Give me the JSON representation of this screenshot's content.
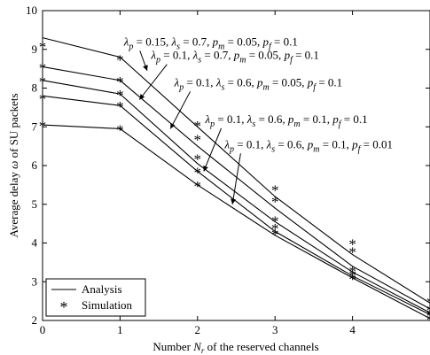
{
  "chart_data": {
    "type": "line",
    "xlabel_parts": [
      "Number ",
      "N",
      "r",
      " of the reserved channels"
    ],
    "ylabel_parts": [
      "Average delay ",
      "ω",
      " of SU packets"
    ],
    "xlim": [
      0,
      5
    ],
    "ylim": [
      2,
      10
    ],
    "x_ticks": [
      0,
      1,
      2,
      3,
      4
    ],
    "y_ticks": [
      2,
      3,
      4,
      5,
      6,
      7,
      8,
      9,
      10
    ],
    "grid": false,
    "legend": {
      "placement": "bottom-left",
      "entries": [
        {
          "label": "Analysis",
          "style": "line"
        },
        {
          "label": "Simulation",
          "style": "marker-asterisk"
        }
      ]
    },
    "x": [
      0,
      1,
      2,
      3,
      4,
      5
    ],
    "series": [
      {
        "label_params": {
          "p": "0.15",
          "s": "0.7",
          "m": "0.05",
          "f": "0.1"
        },
        "analysis": [
          9.3,
          8.8,
          7.0,
          5.2,
          3.7,
          2.45
        ],
        "simulation": [
          9.1,
          8.75,
          7.05,
          5.4,
          4.0,
          2.5
        ]
      },
      {
        "label_params": {
          "p": "0.1",
          "s": "0.7",
          "m": "0.05",
          "f": "0.1"
        },
        "analysis": [
          8.55,
          8.2,
          6.5,
          4.9,
          3.4,
          2.3
        ],
        "simulation": [
          8.55,
          8.2,
          6.7,
          5.1,
          3.8,
          2.3
        ]
      },
      {
        "label_params": {
          "p": "0.1",
          "s": "0.6",
          "m": "0.05",
          "f": "0.1"
        },
        "analysis": [
          8.2,
          7.85,
          6.05,
          4.55,
          3.25,
          2.2
        ],
        "simulation": [
          8.2,
          7.85,
          6.2,
          4.6,
          3.3,
          2.2
        ]
      },
      {
        "label_params": {
          "p": "0.1",
          "s": "0.6",
          "m": "0.1",
          "f": "0.1"
        },
        "analysis": [
          7.8,
          7.55,
          5.85,
          4.3,
          3.15,
          2.15
        ],
        "simulation": [
          7.75,
          7.55,
          5.85,
          4.4,
          3.2,
          2.15
        ]
      },
      {
        "label_params": {
          "p": "0.1",
          "s": "0.6",
          "m": "0.1",
          "f": "0.01"
        },
        "analysis": [
          7.05,
          6.95,
          5.5,
          4.2,
          3.1,
          2.05
        ],
        "simulation": [
          7.05,
          6.95,
          5.5,
          4.25,
          3.1,
          2.05
        ]
      }
    ],
    "annotations": [
      {
        "series": 0,
        "label_at": [
          1.05,
          9.1
        ],
        "arrow_to": [
          1.35,
          8.45
        ]
      },
      {
        "series": 1,
        "label_at": [
          1.4,
          8.75
        ],
        "arrow_to": [
          1.25,
          7.7
        ]
      },
      {
        "series": 2,
        "label_at": [
          1.7,
          8.05
        ],
        "arrow_to": [
          1.65,
          6.95
        ]
      },
      {
        "series": 3,
        "label_at": [
          2.1,
          7.1
        ],
        "arrow_to": [
          2.08,
          5.85
        ]
      },
      {
        "series": 4,
        "label_at": [
          2.35,
          6.45
        ],
        "arrow_to": [
          2.45,
          5.0
        ]
      }
    ]
  }
}
